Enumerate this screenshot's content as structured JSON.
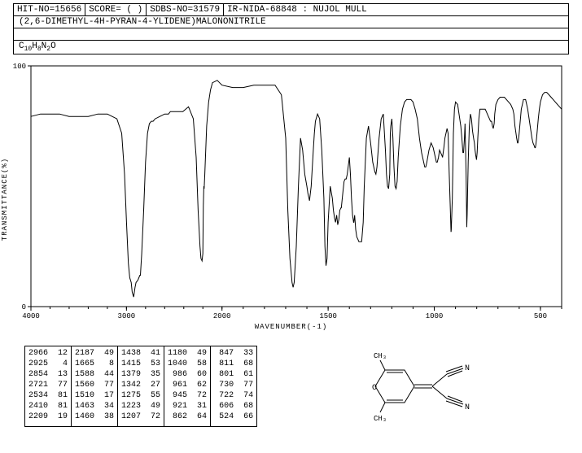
{
  "header": {
    "hit_no": "HIT-NO=15656",
    "score": "SCORE=  ( )",
    "sdbs_no": "SDBS-NO=31579",
    "ir_info": "IR-NIDA-68848 : NUJOL MULL"
  },
  "compound_name": "(2,6-DIMETHYL-4H-PYRAN-4-YLIDENE)MALONONITRILE",
  "formula_parts": [
    "C",
    "10",
    "H",
    "8",
    "N",
    "2",
    "O"
  ],
  "chart": {
    "type": "line",
    "xlim": [
      4000,
      400
    ],
    "ylim": [
      0,
      100
    ],
    "xticks": [
      4000,
      3000,
      2000,
      1500,
      1000,
      500
    ],
    "yticks": [
      0,
      100
    ],
    "xlabel": "WAVENUMBER(-1)",
    "ylabel": "TRANSMITTANCE(%)",
    "line_color": "#000000",
    "grid_color": "#000000",
    "background": "#ffffff",
    "spectrum": [
      [
        4000,
        79
      ],
      [
        3900,
        80
      ],
      [
        3800,
        80
      ],
      [
        3700,
        80
      ],
      [
        3600,
        79
      ],
      [
        3500,
        79
      ],
      [
        3400,
        79
      ],
      [
        3300,
        80
      ],
      [
        3200,
        80
      ],
      [
        3150,
        79
      ],
      [
        3100,
        78
      ],
      [
        3050,
        72
      ],
      [
        3020,
        55
      ],
      [
        3000,
        35
      ],
      [
        2980,
        18
      ],
      [
        2966,
        12
      ],
      [
        2950,
        10
      ],
      [
        2940,
        6
      ],
      [
        2925,
        4
      ],
      [
        2910,
        8
      ],
      [
        2900,
        10
      ],
      [
        2880,
        11
      ],
      [
        2870,
        12
      ],
      [
        2860,
        13
      ],
      [
        2854,
        13
      ],
      [
        2840,
        22
      ],
      [
        2820,
        40
      ],
      [
        2800,
        60
      ],
      [
        2780,
        72
      ],
      [
        2760,
        76
      ],
      [
        2740,
        77
      ],
      [
        2721,
        77
      ],
      [
        2700,
        78
      ],
      [
        2650,
        79
      ],
      [
        2600,
        80
      ],
      [
        2560,
        80
      ],
      [
        2540,
        81
      ],
      [
        2534,
        81
      ],
      [
        2500,
        81
      ],
      [
        2450,
        81
      ],
      [
        2420,
        81
      ],
      [
        2410,
        81
      ],
      [
        2380,
        82
      ],
      [
        2350,
        83
      ],
      [
        2300,
        78
      ],
      [
        2270,
        62
      ],
      [
        2250,
        40
      ],
      [
        2230,
        25
      ],
      [
        2220,
        20
      ],
      [
        2209,
        19
      ],
      [
        2200,
        22
      ],
      [
        2195,
        42
      ],
      [
        2190,
        50
      ],
      [
        2187,
        49
      ],
      [
        2180,
        55
      ],
      [
        2160,
        75
      ],
      [
        2140,
        85
      ],
      [
        2120,
        90
      ],
      [
        2100,
        93
      ],
      [
        2050,
        94
      ],
      [
        2000,
        92
      ],
      [
        1950,
        91
      ],
      [
        1900,
        91
      ],
      [
        1850,
        92
      ],
      [
        1800,
        92
      ],
      [
        1750,
        92
      ],
      [
        1720,
        88
      ],
      [
        1700,
        70
      ],
      [
        1690,
        40
      ],
      [
        1680,
        20
      ],
      [
        1670,
        10
      ],
      [
        1665,
        8
      ],
      [
        1660,
        10
      ],
      [
        1650,
        25
      ],
      [
        1640,
        50
      ],
      [
        1630,
        70
      ],
      [
        1620,
        65
      ],
      [
        1610,
        55
      ],
      [
        1600,
        50
      ],
      [
        1595,
        47
      ],
      [
        1590,
        45
      ],
      [
        1588,
        44
      ],
      [
        1580,
        50
      ],
      [
        1570,
        65
      ],
      [
        1565,
        72
      ],
      [
        1560,
        77
      ],
      [
        1550,
        80
      ],
      [
        1540,
        78
      ],
      [
        1530,
        65
      ],
      [
        1520,
        45
      ],
      [
        1515,
        25
      ],
      [
        1510,
        17
      ],
      [
        1505,
        20
      ],
      [
        1500,
        35
      ],
      [
        1490,
        50
      ],
      [
        1480,
        45
      ],
      [
        1475,
        40
      ],
      [
        1470,
        37
      ],
      [
        1465,
        35
      ],
      [
        1460,
        38
      ],
      [
        1455,
        34
      ],
      [
        1450,
        36
      ],
      [
        1445,
        40
      ],
      [
        1440,
        41
      ],
      [
        1438,
        41
      ],
      [
        1430,
        48
      ],
      [
        1425,
        52
      ],
      [
        1420,
        53
      ],
      [
        1415,
        53
      ],
      [
        1410,
        55
      ],
      [
        1400,
        62
      ],
      [
        1395,
        55
      ],
      [
        1390,
        45
      ],
      [
        1385,
        38
      ],
      [
        1380,
        35
      ],
      [
        1379,
        35
      ],
      [
        1375,
        38
      ],
      [
        1370,
        32
      ],
      [
        1365,
        29
      ],
      [
        1360,
        28
      ],
      [
        1355,
        27
      ],
      [
        1350,
        27
      ],
      [
        1345,
        27
      ],
      [
        1342,
        27
      ],
      [
        1335,
        35
      ],
      [
        1330,
        50
      ],
      [
        1320,
        70
      ],
      [
        1310,
        75
      ],
      [
        1300,
        68
      ],
      [
        1290,
        60
      ],
      [
        1280,
        56
      ],
      [
        1275,
        55
      ],
      [
        1270,
        58
      ],
      [
        1260,
        70
      ],
      [
        1250,
        78
      ],
      [
        1240,
        80
      ],
      [
        1230,
        65
      ],
      [
        1225,
        55
      ],
      [
        1220,
        50
      ],
      [
        1215,
        49
      ],
      [
        1210,
        55
      ],
      [
        1207,
        72
      ],
      [
        1205,
        75
      ],
      [
        1200,
        78
      ],
      [
        1195,
        70
      ],
      [
        1190,
        58
      ],
      [
        1185,
        50
      ],
      [
        1180,
        49
      ],
      [
        1175,
        52
      ],
      [
        1170,
        62
      ],
      [
        1160,
        75
      ],
      [
        1150,
        82
      ],
      [
        1140,
        85
      ],
      [
        1130,
        86
      ],
      [
        1120,
        86
      ],
      [
        1110,
        86
      ],
      [
        1100,
        85
      ],
      [
        1090,
        82
      ],
      [
        1080,
        78
      ],
      [
        1070,
        70
      ],
      [
        1060,
        64
      ],
      [
        1050,
        60
      ],
      [
        1045,
        58
      ],
      [
        1040,
        58
      ],
      [
        1035,
        60
      ],
      [
        1025,
        65
      ],
      [
        1015,
        68
      ],
      [
        1005,
        66
      ],
      [
        995,
        62
      ],
      [
        990,
        60
      ],
      [
        986,
        60
      ],
      [
        980,
        62
      ],
      [
        975,
        65
      ],
      [
        970,
        64
      ],
      [
        965,
        63
      ],
      [
        961,
        62
      ],
      [
        955,
        66
      ],
      [
        950,
        70
      ],
      [
        945,
        72
      ],
      [
        940,
        74
      ],
      [
        935,
        72
      ],
      [
        930,
        56
      ],
      [
        925,
        42
      ],
      [
        922,
        33
      ],
      [
        921,
        31
      ],
      [
        920,
        32
      ],
      [
        915,
        45
      ],
      [
        910,
        72
      ],
      [
        905,
        82
      ],
      [
        900,
        85
      ],
      [
        890,
        84
      ],
      [
        880,
        78
      ],
      [
        875,
        75
      ],
      [
        870,
        70
      ],
      [
        865,
        64
      ],
      [
        862,
        64
      ],
      [
        858,
        70
      ],
      [
        855,
        76
      ],
      [
        850,
        55
      ],
      [
        848,
        40
      ],
      [
        847,
        33
      ],
      [
        845,
        38
      ],
      [
        840,
        60
      ],
      [
        835,
        75
      ],
      [
        830,
        80
      ],
      [
        825,
        78
      ],
      [
        820,
        73
      ],
      [
        815,
        70
      ],
      [
        811,
        68
      ],
      [
        808,
        65
      ],
      [
        805,
        63
      ],
      [
        801,
        61
      ],
      [
        798,
        64
      ],
      [
        795,
        70
      ],
      [
        790,
        78
      ],
      [
        785,
        82
      ],
      [
        780,
        82
      ],
      [
        775,
        82
      ],
      [
        770,
        82
      ],
      [
        765,
        82
      ],
      [
        760,
        82
      ],
      [
        755,
        81
      ],
      [
        750,
        80
      ],
      [
        745,
        79
      ],
      [
        740,
        78
      ],
      [
        735,
        77
      ],
      [
        730,
        77
      ],
      [
        726,
        75
      ],
      [
        722,
        74
      ],
      [
        718,
        76
      ],
      [
        715,
        80
      ],
      [
        710,
        84
      ],
      [
        700,
        86
      ],
      [
        690,
        87
      ],
      [
        680,
        87
      ],
      [
        670,
        87
      ],
      [
        660,
        86
      ],
      [
        650,
        85
      ],
      [
        640,
        84
      ],
      [
        630,
        82
      ],
      [
        625,
        80
      ],
      [
        620,
        75
      ],
      [
        615,
        72
      ],
      [
        612,
        70
      ],
      [
        608,
        68
      ],
      [
        606,
        68
      ],
      [
        604,
        69
      ],
      [
        600,
        72
      ],
      [
        590,
        82
      ],
      [
        580,
        86
      ],
      [
        570,
        86
      ],
      [
        560,
        82
      ],
      [
        550,
        76
      ],
      [
        545,
        73
      ],
      [
        540,
        70
      ],
      [
        535,
        68
      ],
      [
        530,
        67
      ],
      [
        526,
        66
      ],
      [
        524,
        66
      ],
      [
        522,
        67
      ],
      [
        518,
        70
      ],
      [
        510,
        78
      ],
      [
        505,
        82
      ],
      [
        500,
        85
      ],
      [
        490,
        88
      ],
      [
        480,
        89
      ],
      [
        470,
        89
      ],
      [
        460,
        88
      ],
      [
        450,
        87
      ],
      [
        440,
        86
      ],
      [
        430,
        85
      ],
      [
        420,
        84
      ],
      [
        410,
        83
      ],
      [
        400,
        82
      ]
    ]
  },
  "peak_table": {
    "columns": [
      [
        [
          "2966",
          "12"
        ],
        [
          "2925",
          " 4"
        ],
        [
          "2854",
          "13"
        ],
        [
          "2721",
          "77"
        ],
        [
          "2534",
          "81"
        ],
        [
          "2410",
          "81"
        ],
        [
          "2209",
          "19"
        ]
      ],
      [
        [
          "2187",
          "49"
        ],
        [
          "1665",
          " 8"
        ],
        [
          "1588",
          "44"
        ],
        [
          "1560",
          "77"
        ],
        [
          "1510",
          "17"
        ],
        [
          "1463",
          "34"
        ],
        [
          "1460",
          "38"
        ]
      ],
      [
        [
          "1438",
          "41"
        ],
        [
          "1415",
          "53"
        ],
        [
          "1379",
          "35"
        ],
        [
          "1342",
          "27"
        ],
        [
          "1275",
          "55"
        ],
        [
          "1223",
          "49"
        ],
        [
          "1207",
          "72"
        ]
      ],
      [
        [
          "1180",
          "49"
        ],
        [
          "1040",
          "58"
        ],
        [
          " 986",
          "60"
        ],
        [
          " 961",
          "62"
        ],
        [
          " 945",
          "72"
        ],
        [
          " 921",
          "31"
        ],
        [
          " 862",
          "64"
        ]
      ],
      [
        [
          " 847",
          "33"
        ],
        [
          " 811",
          "68"
        ],
        [
          " 801",
          "61"
        ],
        [
          " 730",
          "77"
        ],
        [
          " 722",
          "74"
        ],
        [
          " 606",
          "68"
        ],
        [
          " 524",
          "66"
        ]
      ]
    ]
  },
  "structure": {
    "labels": {
      "ch3_top": "CH₃",
      "ch3_bottom": "CH₃",
      "n1": "N",
      "n2": "N",
      "o": "O"
    }
  }
}
